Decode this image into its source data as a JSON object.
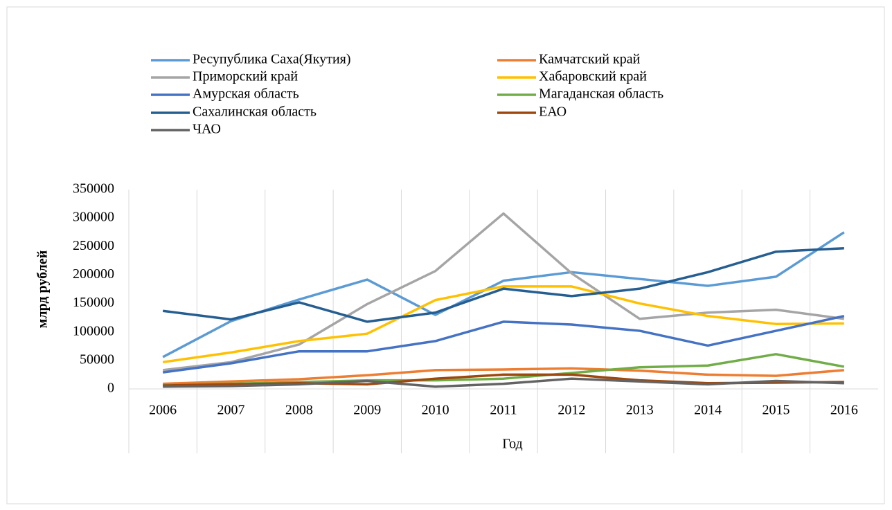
{
  "chart_data": {
    "type": "line",
    "x_label": "Год",
    "y_label": "млрд рублей",
    "categories": [
      "2006",
      "2007",
      "2008",
      "2009",
      "2010",
      "2011",
      "2012",
      "2013",
      "2014",
      "2015",
      "2016"
    ],
    "series": [
      {
        "name": "Ресупублика Саха(Якутия)",
        "color": "#5b9bd5",
        "values": [
          56000,
          119000,
          157000,
          192000,
          130000,
          190000,
          205000,
          193000,
          181000,
          197000,
          275000
        ]
      },
      {
        "name": "Камчатский край",
        "color": "#ed7d31",
        "values": [
          9000,
          13000,
          17000,
          24000,
          33000,
          34000,
          36000,
          32000,
          25000,
          23000,
          33000
        ]
      },
      {
        "name": "Приморский край",
        "color": "#a5a5a5",
        "values": [
          33000,
          47000,
          78000,
          149000,
          207000,
          308000,
          203000,
          123000,
          134000,
          139000,
          123000
        ]
      },
      {
        "name": "Хабаровский край",
        "color": "#ffc000",
        "values": [
          47000,
          64000,
          84000,
          97000,
          156000,
          180000,
          180000,
          150000,
          128000,
          114000,
          115000
        ]
      },
      {
        "name": "Амурская область",
        "color": "#4472c4",
        "values": [
          29000,
          45000,
          66000,
          66000,
          84000,
          118000,
          113000,
          102000,
          76000,
          102000,
          128000
        ]
      },
      {
        "name": "Магаданская область",
        "color": "#70ad47",
        "values": [
          7000,
          9000,
          12000,
          15000,
          15000,
          18000,
          28000,
          38000,
          41000,
          61000,
          39000
        ]
      },
      {
        "name": "Сахалинская область",
        "color": "#255e91",
        "values": [
          137000,
          122000,
          152000,
          118000,
          134000,
          176000,
          163000,
          176000,
          205000,
          241000,
          247000
        ]
      },
      {
        "name": "ЕАО",
        "color": "#9e480e",
        "values": [
          6000,
          8000,
          10000,
          8000,
          18000,
          25000,
          25000,
          15000,
          10000,
          11000,
          12000
        ]
      },
      {
        "name": "ЧАО",
        "color": "#636363",
        "values": [
          4000,
          5000,
          8000,
          14000,
          4000,
          9000,
          18000,
          13000,
          8000,
          14000,
          10000
        ]
      }
    ],
    "ylim": [
      0,
      350000
    ],
    "yticks": [
      0,
      50000,
      100000,
      150000,
      200000,
      250000,
      300000,
      350000
    ],
    "grid": true,
    "legend": "top"
  }
}
